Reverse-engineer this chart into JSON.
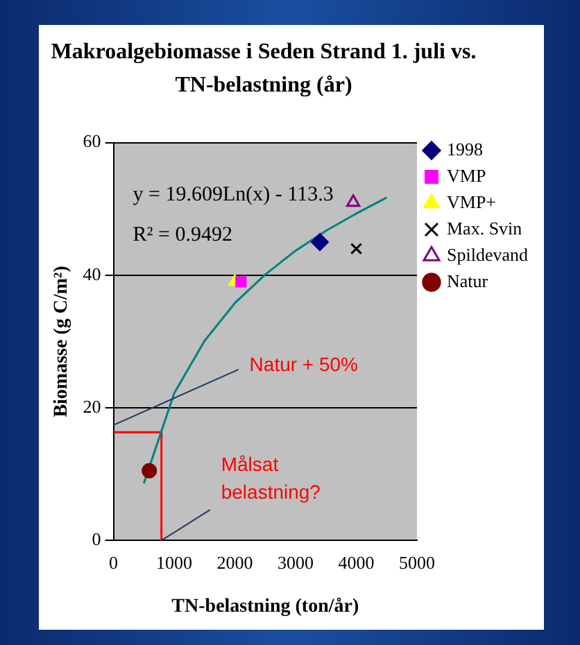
{
  "chart_data": {
    "type": "scatter",
    "title": "Makroalgebiomasse i  Seden Strand 1. juli vs.\nTN-belastning (år)",
    "xlabel": "TN-belastning (ton/år)",
    "ylabel": "Biomasse (g C/m²)",
    "xlim": [
      0,
      5000
    ],
    "xticks": [
      0,
      1000,
      2000,
      3000,
      4000,
      5000
    ],
    "ylim": [
      0,
      60
    ],
    "yticks": [
      0,
      20,
      40,
      60
    ],
    "grid": "y",
    "legend": "right",
    "series": [
      {
        "name": "1998",
        "color": "#000080",
        "marker": "diamond",
        "x": [
          3400
        ],
        "values": [
          45
        ]
      },
      {
        "name": "VMP",
        "color": "#ff00ff",
        "marker": "square",
        "x": [
          2100
        ],
        "values": [
          39
        ]
      },
      {
        "name": "VMP+",
        "color": "#ffff00",
        "marker": "triangle",
        "x": [
          2000
        ],
        "values": [
          39
        ]
      },
      {
        "name": "Max. Svin",
        "color": "#000000",
        "marker": "cross",
        "x": [
          4000
        ],
        "values": [
          44
        ]
      },
      {
        "name": "Spildevand",
        "color": "#800080",
        "marker": "triangle",
        "x": [
          3950
        ],
        "values": [
          51
        ]
      },
      {
        "name": "Natur",
        "color": "#800000",
        "marker": "circle",
        "x": [
          590
        ],
        "values": [
          10.5
        ]
      },
      {
        "type": "line",
        "color": "#008080",
        "x": [
          500,
          1000,
          1500,
          2000,
          2500,
          3000,
          3500,
          4000,
          4500
        ],
        "values": [
          8.6,
          22.2,
          30.1,
          35.8,
          40.1,
          43.7,
          46.7,
          49.3,
          51.7
        ]
      },
      {
        "type": "line",
        "color": "#ff0000",
        "x": [
          0,
          790,
          790
        ],
        "values": [
          16.3,
          16.3,
          0
        ]
      }
    ],
    "annotations": [
      "y = 19.609Ln(x) - 113.3",
      "R² = 0.9492",
      "Natur + 50%",
      {
        "text": "Målsat belastning?",
        "x": 790,
        "y": 0
      }
    ]
  }
}
